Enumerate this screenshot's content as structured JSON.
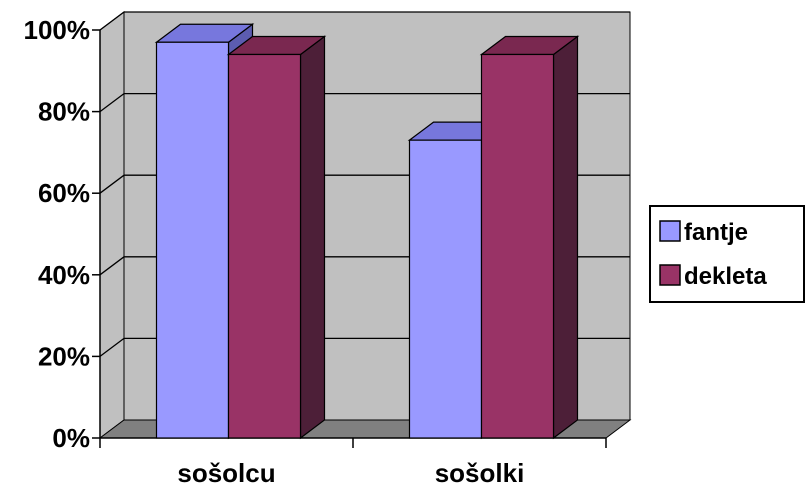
{
  "chart_data": {
    "type": "bar",
    "categories": [
      "sošolcu",
      "sošolki"
    ],
    "series": [
      {
        "name": "fantje",
        "values": [
          97,
          73
        ],
        "color": "#9999ff",
        "top_color": "#7777dd",
        "side_color": "#5c5cb0"
      },
      {
        "name": "dekleta",
        "values": [
          94,
          94
        ],
        "color": "#993366",
        "top_color": "#7a2850",
        "side_color": "#4d1f38"
      }
    ],
    "ylim": [
      0,
      100
    ],
    "y_ticks": [
      "0%",
      "20%",
      "40%",
      "60%",
      "80%",
      "100%"
    ],
    "grid": true,
    "three_d": true,
    "wall_color": "#c0c0c0",
    "floor_color": "#808080",
    "legend_position": "right"
  }
}
